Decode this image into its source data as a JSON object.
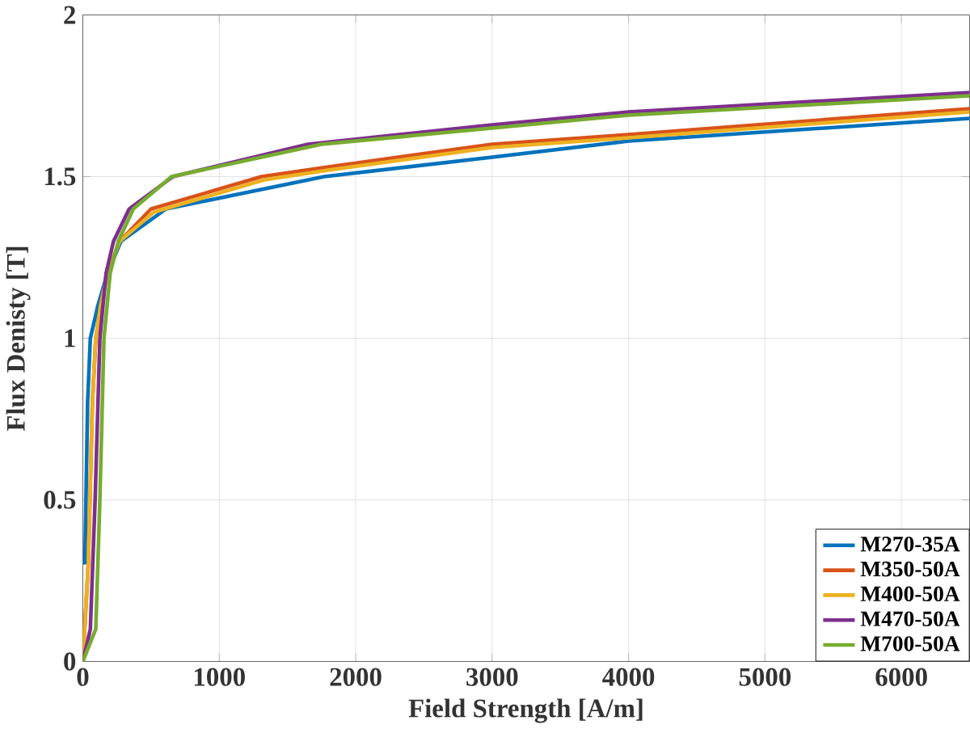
{
  "chart_data": {
    "type": "line",
    "xlabel": "Field Strength [A/m]",
    "ylabel": "Flux Denisty [T]",
    "xlim": [
      0,
      6500
    ],
    "ylim": [
      0,
      2
    ],
    "xticks": [
      0,
      1000,
      2000,
      3000,
      4000,
      5000,
      6000
    ],
    "yticks": [
      0,
      0.5,
      1,
      1.5,
      2
    ],
    "grid": true,
    "legend": "bottom right",
    "line_style": "solid",
    "series": [
      {
        "name": "M270-35A",
        "color": "#0072bd",
        "x": [
          15,
          35,
          55,
          110,
          180,
          280,
          610,
          1770,
          3000,
          4000,
          6500
        ],
        "values": [
          0.3,
          0.8,
          1.0,
          1.1,
          1.2,
          1.3,
          1.4,
          1.5,
          1.56,
          1.61,
          1.68
        ]
      },
      {
        "name": "M350-50A",
        "color": "#d95319",
        "x": [
          0,
          40,
          70,
          95,
          130,
          180,
          270,
          500,
          1310,
          1800,
          3000,
          4000,
          6500
        ],
        "values": [
          0,
          0.3,
          0.8,
          1.0,
          1.1,
          1.2,
          1.3,
          1.4,
          1.5,
          1.53,
          1.6,
          1.63,
          1.71
        ]
      },
      {
        "name": "M400-50A",
        "color": "#edb120",
        "x": [
          0,
          40,
          70,
          95,
          130,
          180,
          270,
          520,
          1330,
          1800,
          3000,
          4000,
          6500
        ],
        "values": [
          0,
          0.3,
          0.8,
          1.0,
          1.1,
          1.2,
          1.3,
          1.39,
          1.49,
          1.52,
          1.59,
          1.62,
          1.7
        ]
      },
      {
        "name": "M470-50A",
        "color": "#7e2f8e",
        "x": [
          0,
          55,
          90,
          125,
          170,
          225,
          340,
          660,
          1650,
          3000,
          4000,
          6500
        ],
        "values": [
          0,
          0.1,
          0.5,
          1.0,
          1.2,
          1.3,
          1.4,
          1.5,
          1.6,
          1.66,
          1.7,
          1.76
        ]
      },
      {
        "name": "M700-50A",
        "color": "#77ac30",
        "x": [
          0,
          95,
          125,
          155,
          200,
          260,
          370,
          650,
          1750,
          3000,
          4000,
          6500
        ],
        "values": [
          0,
          0.1,
          0.5,
          1.0,
          1.2,
          1.3,
          1.4,
          1.5,
          1.6,
          1.65,
          1.69,
          1.75
        ]
      }
    ]
  }
}
